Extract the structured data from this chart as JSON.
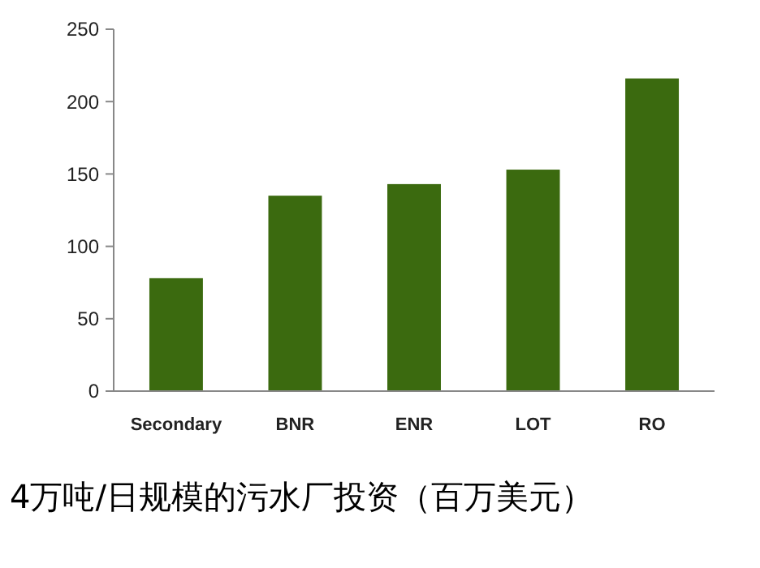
{
  "chart_data": {
    "type": "bar",
    "title": "4万吨/日规模的污水厂投资（百万美元）",
    "categories": [
      "Secondary",
      "BNR",
      "ENR",
      "LOT",
      "RO"
    ],
    "values": [
      78,
      135,
      143,
      153,
      216
    ],
    "color": "#3b6a0f",
    "ylim": [
      0,
      250
    ],
    "yticks": [
      0,
      50,
      100,
      150,
      200,
      250
    ],
    "grid": false
  }
}
